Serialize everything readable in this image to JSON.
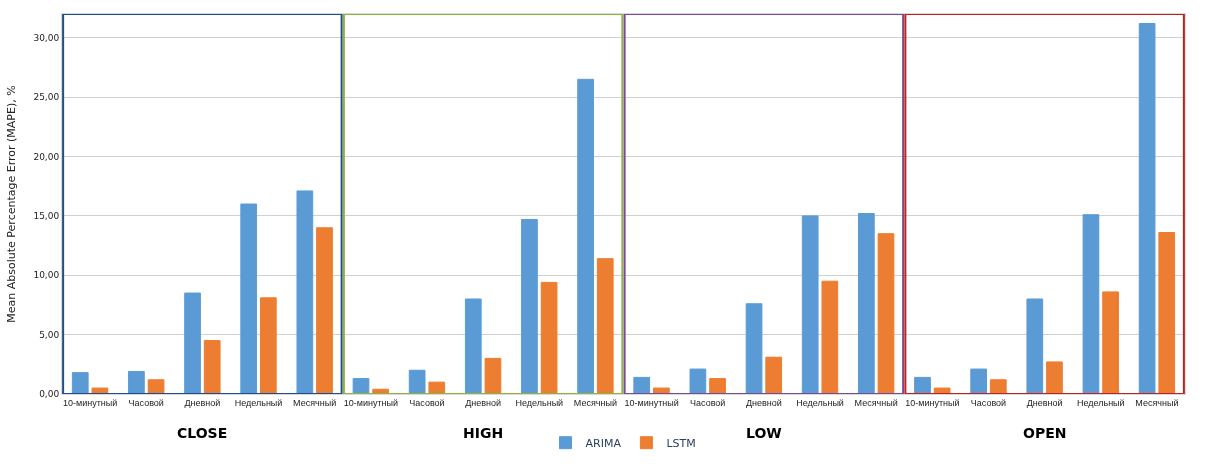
{
  "chart_data": {
    "type": "bar",
    "ylabel": "Mean Absolute Percentage Error (MAPE), %",
    "categories": [
      "10-минутный",
      "Часовой",
      "Дневной",
      "Недельный",
      "Месячный",
      "10-минутный",
      "Часовой",
      "Дневной",
      "Недельный",
      "Месячный",
      "10-минутный",
      "Часовой",
      "Дневной",
      "Недельный",
      "Месячный",
      "10-минутный",
      "Часовой",
      "Дневной",
      "Недельный",
      "Месячный"
    ],
    "series": [
      {
        "name": "ARIMA",
        "color": "#5b9bd5",
        "values": [
          1.8,
          1.9,
          8.5,
          16.0,
          17.1,
          1.3,
          2.0,
          8.0,
          14.7,
          26.5,
          1.4,
          2.1,
          7.6,
          15.0,
          15.2,
          1.4,
          2.1,
          8.0,
          15.1,
          31.2
        ]
      },
      {
        "name": "LSTM",
        "color": "#ed7d31",
        "values": [
          0.5,
          1.2,
          4.5,
          8.1,
          14.0,
          0.4,
          1.0,
          3.0,
          9.4,
          11.4,
          0.5,
          1.3,
          3.1,
          9.5,
          13.5,
          0.5,
          1.2,
          2.7,
          8.6,
          13.6
        ]
      }
    ],
    "annotations": [
      "CLOSE",
      "HIGH",
      "LOW",
      "OPEN"
    ],
    "ylim": [
      0,
      32
    ],
    "yticks": [
      {
        "value": 0,
        "label": "0,00"
      },
      {
        "value": 5,
        "label": "5,00"
      },
      {
        "value": 10,
        "label": "10,00"
      },
      {
        "value": 15,
        "label": "15,00"
      },
      {
        "value": 20,
        "label": "20,00"
      },
      {
        "value": 25,
        "label": "25,00"
      },
      {
        "value": 30,
        "label": "30,00"
      }
    ],
    "grid": "y",
    "legend": "bottom"
  }
}
